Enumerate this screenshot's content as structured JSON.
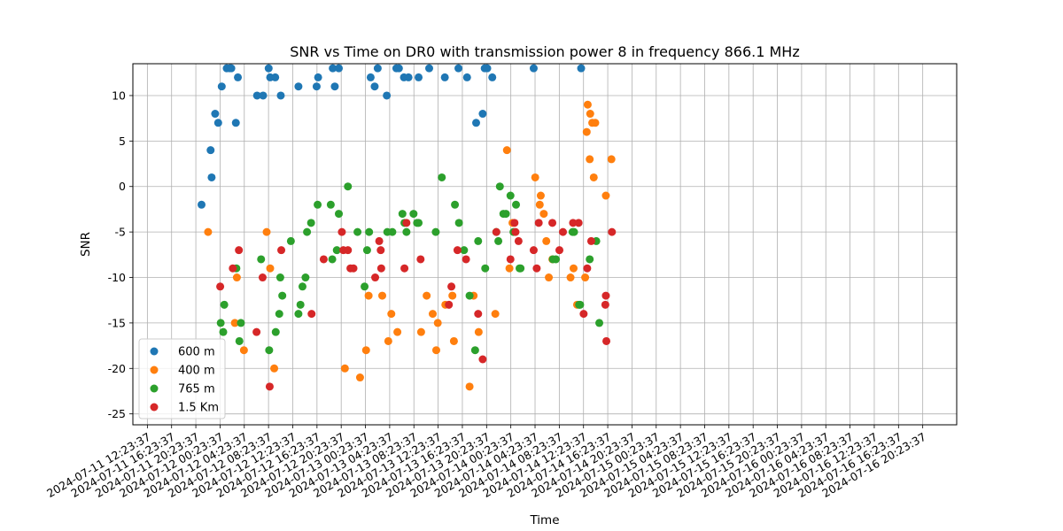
{
  "chart_data": {
    "type": "scatter",
    "title": "SNR vs Time on DR0 with transmission power 8 in frequency 866.1 MHz",
    "xlabel": "Time",
    "ylabel": "SNR",
    "grid": true,
    "legend_position": "lower-left",
    "x_range": [
      "2024-07-11 10:00",
      "2024-07-17 02:00"
    ],
    "ylim": [
      -26.2,
      13.5
    ],
    "x_ticks": [
      "2024-07-11 12:23:37",
      "2024-07-11 16:23:37",
      "2024-07-11 20:23:37",
      "2024-07-12 00:23:37",
      "2024-07-12 04:23:37",
      "2024-07-12 08:23:37",
      "2024-07-12 12:23:37",
      "2024-07-12 16:23:37",
      "2024-07-12 20:23:37",
      "2024-07-13 00:23:37",
      "2024-07-13 04:23:37",
      "2024-07-13 08:23:37",
      "2024-07-13 12:23:37",
      "2024-07-13 16:23:37",
      "2024-07-13 20:23:37",
      "2024-07-14 00:23:37",
      "2024-07-14 04:23:37",
      "2024-07-14 08:23:37",
      "2024-07-14 12:23:37",
      "2024-07-14 16:23:37",
      "2024-07-14 20:23:37",
      "2024-07-15 00:23:37",
      "2024-07-15 04:23:37",
      "2024-07-15 08:23:37",
      "2024-07-15 12:23:37",
      "2024-07-15 16:23:37",
      "2024-07-15 20:23:37",
      "2024-07-16 00:23:37",
      "2024-07-16 04:23:37",
      "2024-07-16 08:23:37",
      "2024-07-16 12:23:37",
      "2024-07-16 16:23:37",
      "2024-07-16 20:23:37"
    ],
    "y_ticks": [
      10,
      5,
      0,
      -5,
      -10,
      -15,
      -20,
      -25
    ],
    "series": [
      {
        "name": "600 m",
        "color": "#1f77b4",
        "points": [
          [
            "2024-07-11 21:20",
            -2
          ],
          [
            "2024-07-11 22:50",
            4
          ],
          [
            "2024-07-11 23:00",
            1
          ],
          [
            "2024-07-11 23:35",
            8
          ],
          [
            "2024-07-12 00:05",
            7
          ],
          [
            "2024-07-12 00:40",
            11
          ],
          [
            "2024-07-12 01:30",
            13
          ],
          [
            "2024-07-12 02:00",
            13
          ],
          [
            "2024-07-12 02:15",
            13
          ],
          [
            "2024-07-12 03:00",
            7
          ],
          [
            "2024-07-12 03:20",
            12
          ],
          [
            "2024-07-12 06:30",
            10
          ],
          [
            "2024-07-12 07:30",
            10
          ],
          [
            "2024-07-12 08:25",
            13
          ],
          [
            "2024-07-12 08:40",
            12
          ],
          [
            "2024-07-12 09:30",
            12
          ],
          [
            "2024-07-12 10:25",
            10
          ],
          [
            "2024-07-12 13:20",
            11
          ],
          [
            "2024-07-12 16:20",
            11
          ],
          [
            "2024-07-12 16:35",
            12
          ],
          [
            "2024-07-12 19:00",
            13
          ],
          [
            "2024-07-12 19:20",
            11
          ],
          [
            "2024-07-12 20:00",
            13
          ],
          [
            "2024-07-13 01:15",
            12
          ],
          [
            "2024-07-13 01:55",
            11
          ],
          [
            "2024-07-13 02:25",
            13
          ],
          [
            "2024-07-13 03:55",
            10
          ],
          [
            "2024-07-13 05:30",
            13
          ],
          [
            "2024-07-13 05:55",
            13
          ],
          [
            "2024-07-13 06:45",
            12
          ],
          [
            "2024-07-13 07:30",
            12
          ],
          [
            "2024-07-13 09:10",
            12
          ],
          [
            "2024-07-13 10:55",
            13
          ],
          [
            "2024-07-13 13:30",
            12
          ],
          [
            "2024-07-13 15:45",
            13
          ],
          [
            "2024-07-13 17:10",
            12
          ],
          [
            "2024-07-13 18:40",
            7
          ],
          [
            "2024-07-13 19:45",
            8
          ],
          [
            "2024-07-13 20:05",
            13
          ],
          [
            "2024-07-13 20:30",
            13
          ],
          [
            "2024-07-13 21:20",
            12
          ],
          [
            "2024-07-14 04:10",
            13
          ],
          [
            "2024-07-14 12:00",
            13
          ]
        ]
      },
      {
        "name": "400 m",
        "color": "#ff7f0e",
        "points": [
          [
            "2024-07-11 22:25",
            -5
          ],
          [
            "2024-07-12 02:50",
            -15
          ],
          [
            "2024-07-12 03:10",
            -10
          ],
          [
            "2024-07-12 04:20",
            -18
          ],
          [
            "2024-07-12 08:05",
            -5
          ],
          [
            "2024-07-12 08:40",
            -9
          ],
          [
            "2024-07-12 09:20",
            -20
          ],
          [
            "2024-07-12 21:00",
            -20
          ],
          [
            "2024-07-12 23:30",
            -21
          ],
          [
            "2024-07-13 00:30",
            -18
          ],
          [
            "2024-07-13 00:55",
            -12
          ],
          [
            "2024-07-13 03:10",
            -12
          ],
          [
            "2024-07-13 04:10",
            -17
          ],
          [
            "2024-07-13 04:40",
            -14
          ],
          [
            "2024-07-13 05:40",
            -16
          ],
          [
            "2024-07-13 09:35",
            -16
          ],
          [
            "2024-07-13 10:30",
            -12
          ],
          [
            "2024-07-13 11:30",
            -14
          ],
          [
            "2024-07-13 12:05",
            -18
          ],
          [
            "2024-07-13 12:20",
            -15
          ],
          [
            "2024-07-13 13:35",
            -13
          ],
          [
            "2024-07-13 14:45",
            -12
          ],
          [
            "2024-07-13 15:00",
            -17
          ],
          [
            "2024-07-13 17:35",
            -22
          ],
          [
            "2024-07-13 18:15",
            -12
          ],
          [
            "2024-07-13 19:05",
            -16
          ],
          [
            "2024-07-13 21:50",
            -14
          ],
          [
            "2024-07-13 23:45",
            4
          ],
          [
            "2024-07-14 00:10",
            -9
          ],
          [
            "2024-07-14 00:40",
            -4
          ],
          [
            "2024-07-14 04:25",
            1
          ],
          [
            "2024-07-14 05:10",
            -2
          ],
          [
            "2024-07-14 05:20",
            -1
          ],
          [
            "2024-07-14 05:50",
            -3
          ],
          [
            "2024-07-14 06:15",
            -6
          ],
          [
            "2024-07-14 06:40",
            -10
          ],
          [
            "2024-07-14 07:15",
            -8
          ],
          [
            "2024-07-14 10:15",
            -10
          ],
          [
            "2024-07-14 10:45",
            -9
          ],
          [
            "2024-07-14 11:20",
            -13
          ],
          [
            "2024-07-14 12:40",
            -10
          ],
          [
            "2024-07-14 12:55",
            6
          ],
          [
            "2024-07-14 13:05",
            9
          ],
          [
            "2024-07-14 13:25",
            3
          ],
          [
            "2024-07-14 13:30",
            8
          ],
          [
            "2024-07-14 13:50",
            7
          ],
          [
            "2024-07-14 14:05",
            1
          ],
          [
            "2024-07-14 14:20",
            7
          ],
          [
            "2024-07-14 16:05",
            -1
          ],
          [
            "2024-07-14 17:00",
            3
          ]
        ]
      },
      {
        "name": "765 m",
        "color": "#2ca02c",
        "points": [
          [
            "2024-07-12 00:30",
            -15
          ],
          [
            "2024-07-12 00:55",
            -16
          ],
          [
            "2024-07-12 01:05",
            -13
          ],
          [
            "2024-07-12 03:05",
            -9
          ],
          [
            "2024-07-12 03:35",
            -17
          ],
          [
            "2024-07-12 03:50",
            -15
          ],
          [
            "2024-07-12 07:10",
            -8
          ],
          [
            "2024-07-12 08:30",
            -18
          ],
          [
            "2024-07-12 09:35",
            -16
          ],
          [
            "2024-07-12 10:10",
            -14
          ],
          [
            "2024-07-12 10:20",
            -10
          ],
          [
            "2024-07-12 10:40",
            -12
          ],
          [
            "2024-07-12 12:05",
            -6
          ],
          [
            "2024-07-12 13:20",
            -14
          ],
          [
            "2024-07-12 13:40",
            -13
          ],
          [
            "2024-07-12 14:00",
            -11
          ],
          [
            "2024-07-12 14:30",
            -10
          ],
          [
            "2024-07-12 14:45",
            -5
          ],
          [
            "2024-07-12 15:25",
            -4
          ],
          [
            "2024-07-12 16:30",
            -2
          ],
          [
            "2024-07-12 18:40",
            -2
          ],
          [
            "2024-07-12 18:55",
            -8
          ],
          [
            "2024-07-12 19:40",
            -7
          ],
          [
            "2024-07-12 20:00",
            -3
          ],
          [
            "2024-07-12 21:30",
            0
          ],
          [
            "2024-07-12 23:05",
            -5
          ],
          [
            "2024-07-13 00:15",
            -11
          ],
          [
            "2024-07-13 00:40",
            -7
          ],
          [
            "2024-07-13 01:00",
            -5
          ],
          [
            "2024-07-13 04:00",
            -5
          ],
          [
            "2024-07-13 04:50",
            -5
          ],
          [
            "2024-07-13 06:30",
            -3
          ],
          [
            "2024-07-13 06:50",
            -4
          ],
          [
            "2024-07-13 07:10",
            -5
          ],
          [
            "2024-07-13 08:20",
            -3
          ],
          [
            "2024-07-13 08:55",
            -4
          ],
          [
            "2024-07-13 09:10",
            -4
          ],
          [
            "2024-07-13 12:00",
            -5
          ],
          [
            "2024-07-13 13:00",
            1
          ],
          [
            "2024-07-13 15:10",
            -2
          ],
          [
            "2024-07-13 15:50",
            -4
          ],
          [
            "2024-07-13 16:40",
            -7
          ],
          [
            "2024-07-13 17:35",
            -12
          ],
          [
            "2024-07-13 18:30",
            -18
          ],
          [
            "2024-07-13 19:00",
            -6
          ],
          [
            "2024-07-13 20:10",
            -9
          ],
          [
            "2024-07-13 22:00",
            -5
          ],
          [
            "2024-07-13 22:20",
            -6
          ],
          [
            "2024-07-13 22:35",
            0
          ],
          [
            "2024-07-13 23:10",
            -3
          ],
          [
            "2024-07-13 23:35",
            -3
          ],
          [
            "2024-07-14 00:20",
            -1
          ],
          [
            "2024-07-14 00:50",
            -5
          ],
          [
            "2024-07-14 01:15",
            -2
          ],
          [
            "2024-07-14 01:50",
            -9
          ],
          [
            "2024-07-14 02:00",
            -9
          ],
          [
            "2024-07-14 07:20",
            -8
          ],
          [
            "2024-07-14 07:50",
            -8
          ],
          [
            "2024-07-14 10:35",
            -5
          ],
          [
            "2024-07-14 10:50",
            -5
          ],
          [
            "2024-07-14 11:40",
            -13
          ],
          [
            "2024-07-14 11:50",
            -13
          ],
          [
            "2024-07-14 13:25",
            -8
          ],
          [
            "2024-07-14 14:30",
            -6
          ],
          [
            "2024-07-14 15:00",
            -15
          ]
        ]
      },
      {
        "name": "1.5 Km",
        "color": "#d62728",
        "points": [
          [
            "2024-07-12 00:25",
            -11
          ],
          [
            "2024-07-12 02:30",
            -9
          ],
          [
            "2024-07-12 03:30",
            -7
          ],
          [
            "2024-07-12 06:25",
            -16
          ],
          [
            "2024-07-12 07:25",
            -10
          ],
          [
            "2024-07-12 08:35",
            -22
          ],
          [
            "2024-07-12 10:30",
            -7
          ],
          [
            "2024-07-12 15:30",
            -14
          ],
          [
            "2024-07-12 17:30",
            -8
          ],
          [
            "2024-07-12 20:30",
            -5
          ],
          [
            "2024-07-12 20:45",
            -7
          ],
          [
            "2024-07-12 21:30",
            -7
          ],
          [
            "2024-07-12 21:55",
            -9
          ],
          [
            "2024-07-12 22:25",
            -9
          ],
          [
            "2024-07-13 02:00",
            -10
          ],
          [
            "2024-07-13 02:40",
            -6
          ],
          [
            "2024-07-13 02:55",
            -7
          ],
          [
            "2024-07-13 03:00",
            -9
          ],
          [
            "2024-07-13 06:50",
            -9
          ],
          [
            "2024-07-13 07:10",
            -4
          ],
          [
            "2024-07-13 09:30",
            -8
          ],
          [
            "2024-07-13 14:10",
            -13
          ],
          [
            "2024-07-13 14:35",
            -11
          ],
          [
            "2024-07-13 15:35",
            -7
          ],
          [
            "2024-07-13 17:00",
            -8
          ],
          [
            "2024-07-13 19:00",
            -14
          ],
          [
            "2024-07-13 19:45",
            -19
          ],
          [
            "2024-07-13 22:00",
            -5
          ],
          [
            "2024-07-14 00:20",
            -8
          ],
          [
            "2024-07-14 01:00",
            -4
          ],
          [
            "2024-07-14 01:10",
            -5
          ],
          [
            "2024-07-14 01:40",
            -6
          ],
          [
            "2024-07-14 04:10",
            -7
          ],
          [
            "2024-07-14 04:40",
            -9
          ],
          [
            "2024-07-14 05:00",
            -4
          ],
          [
            "2024-07-14 07:15",
            -4
          ],
          [
            "2024-07-14 08:25",
            -7
          ],
          [
            "2024-07-14 09:00",
            -5
          ],
          [
            "2024-07-14 10:40",
            -4
          ],
          [
            "2024-07-14 11:35",
            -4
          ],
          [
            "2024-07-14 12:25",
            -14
          ],
          [
            "2024-07-14 13:00",
            -9
          ],
          [
            "2024-07-14 13:40",
            -6
          ],
          [
            "2024-07-14 16:00",
            -13
          ],
          [
            "2024-07-14 16:05",
            -12
          ],
          [
            "2024-07-14 16:10",
            -17
          ],
          [
            "2024-07-14 17:05",
            -5
          ]
        ]
      }
    ]
  }
}
